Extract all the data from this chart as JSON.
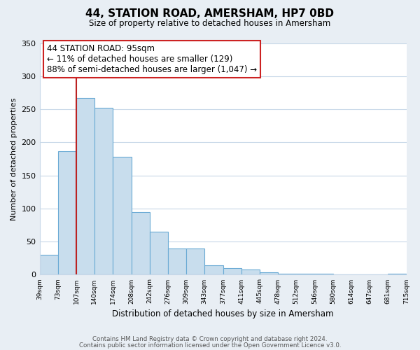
{
  "title": "44, STATION ROAD, AMERSHAM, HP7 0BD",
  "subtitle": "Size of property relative to detached houses in Amersham",
  "xlabel": "Distribution of detached houses by size in Amersham",
  "ylabel": "Number of detached properties",
  "bar_edges": [
    39,
    73,
    107,
    140,
    174,
    208,
    242,
    276,
    309,
    343,
    377,
    411,
    445,
    478,
    512,
    546,
    580,
    614,
    647,
    681,
    715
  ],
  "bar_heights": [
    30,
    187,
    267,
    252,
    178,
    95,
    65,
    40,
    40,
    14,
    10,
    8,
    4,
    2,
    1,
    1,
    0,
    0,
    0,
    1
  ],
  "bar_color": "#c8dded",
  "bar_edge_color": "#6aaad4",
  "marker_color": "#bb2222",
  "annotation_title": "44 STATION ROAD: 95sqm",
  "annotation_line1": "← 11% of detached houses are smaller (129)",
  "annotation_line2": "88% of semi-detached houses are larger (1,047) →",
  "annotation_box_facecolor": "#ffffff",
  "annotation_box_edgecolor": "#cc2222",
  "ylim": [
    0,
    350
  ],
  "yticks": [
    0,
    50,
    100,
    150,
    200,
    250,
    300,
    350
  ],
  "footer1": "Contains HM Land Registry data © Crown copyright and database right 2024.",
  "footer2": "Contains public sector information licensed under the Open Government Licence v3.0.",
  "background_color": "#e8eef4",
  "plot_background": "#ffffff",
  "grid_color": "#c8d8e8"
}
